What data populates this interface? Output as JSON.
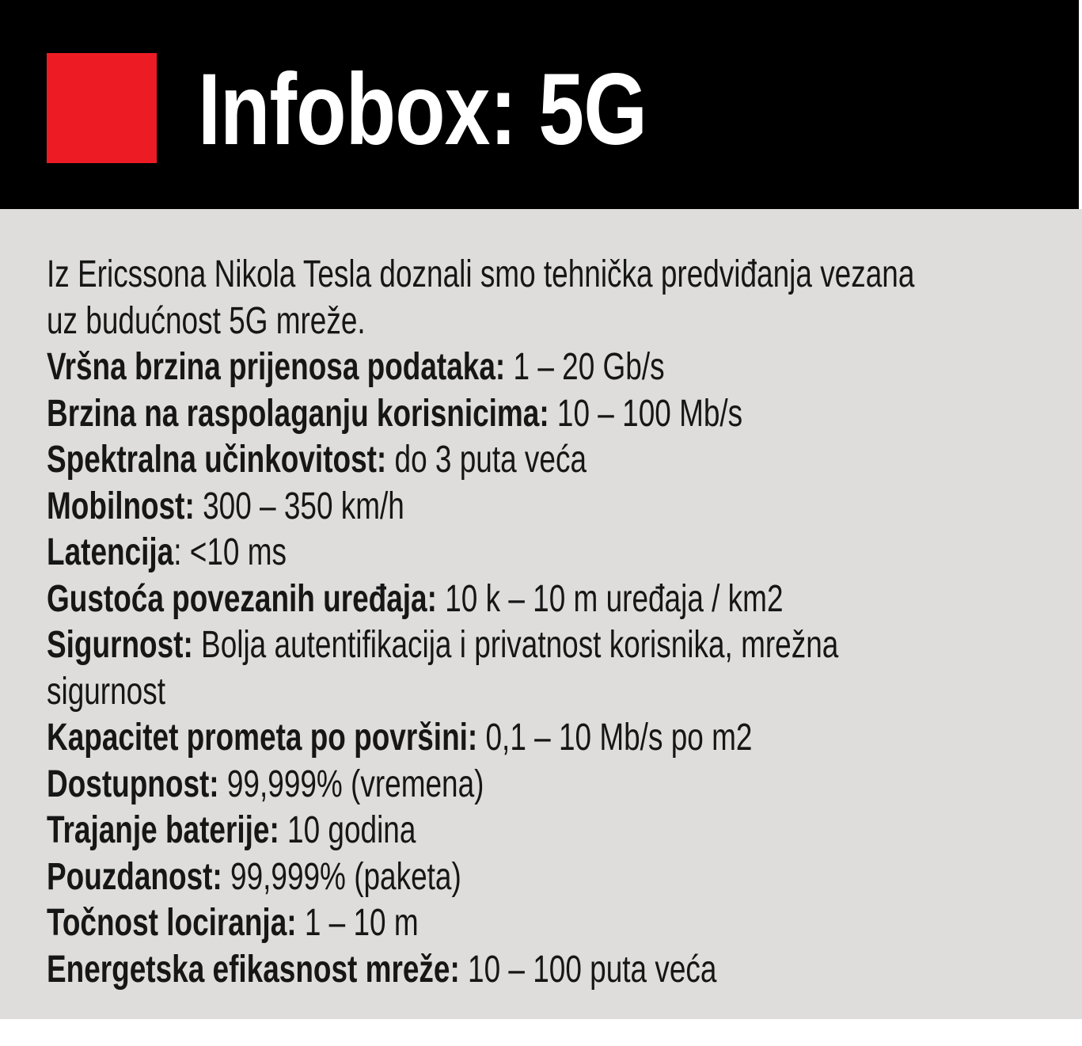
{
  "header": {
    "title": "Infobox: 5G"
  },
  "intro": "Iz Ericssona Nikola Tesla doznali smo tehnička predviđanja vezana\nuz budućnost 5G mreže.",
  "specs": [
    {
      "label": "Vršna brzina prijenosa podataka:",
      "value": " 1 – 20 Gb/s"
    },
    {
      "label": "Brzina na raspolaganju korisnicima:",
      "value": " 10 – 100 Mb/s"
    },
    {
      "label": "Spektralna učinkovitost:",
      "value": " do 3 puta veća"
    },
    {
      "label": "Mobilnost:",
      "value": " 300 – 350 km/h"
    },
    {
      "label": "Latencija",
      "value": ": <10 ms"
    },
    {
      "label": "Gustoća povezanih uređaja:",
      "value": " 10 k – 10 m uređaja / km2"
    },
    {
      "label": "Sigurnost:",
      "value": " Bolja autentifikacija i privatnost korisnika, mrežna\nsigurnost"
    },
    {
      "label": "Kapacitet prometa po površini:",
      "value": " 0,1 – 10 Mb/s po m2"
    },
    {
      "label": "Dostupnost:",
      "value": " 99,999% (vremena)"
    },
    {
      "label": "Trajanje baterije:",
      "value": " 10 godina"
    },
    {
      "label": "Pouzdanost:",
      "value": " 99,999% (paketa)"
    },
    {
      "label": "Točnost lociranja:",
      "value": " 1 – 10 m"
    },
    {
      "label": "Energetska efikasnost mreže:",
      "value": " 10 – 100 puta veća"
    }
  ],
  "colors": {
    "accent_red": "#ed1c24",
    "header_bg": "#000000",
    "panel_bg": "#dedddb",
    "title_color": "#ffffff",
    "text_color": "#161616"
  }
}
